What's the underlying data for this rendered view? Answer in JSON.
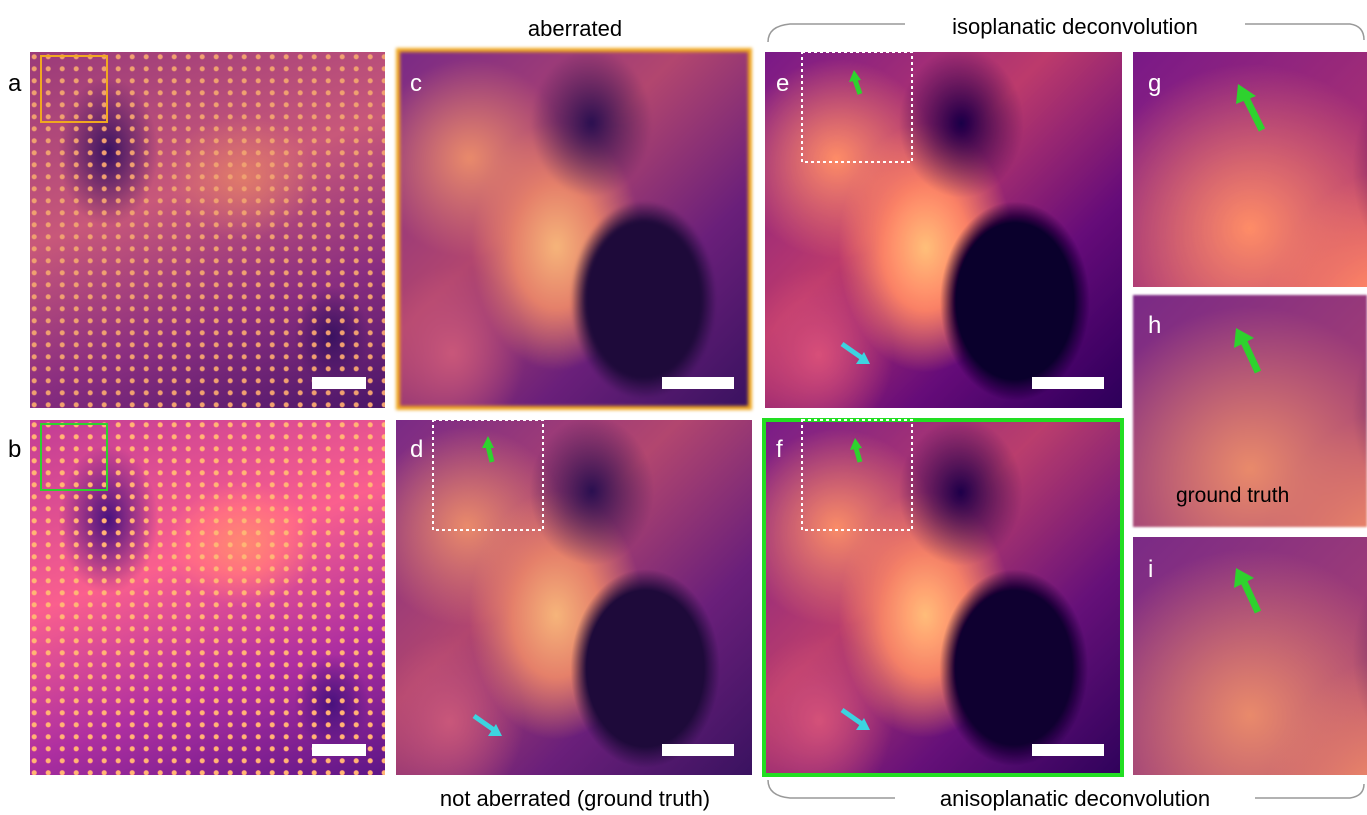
{
  "headers": {
    "top_center": "aberrated",
    "top_right": "isoplanatic deconvolution",
    "bottom_center": "not aberrated (ground truth)",
    "bottom_right": "anisoplanatic deconvolution"
  },
  "panels": [
    {
      "label": "a"
    },
    {
      "label": "b"
    },
    {
      "label": "c"
    },
    {
      "label": "d"
    },
    {
      "label": "e"
    },
    {
      "label": "f"
    },
    {
      "label": "g"
    },
    {
      "label": "h"
    },
    {
      "label": "i"
    }
  ],
  "inset_caption": "ground truth"
}
